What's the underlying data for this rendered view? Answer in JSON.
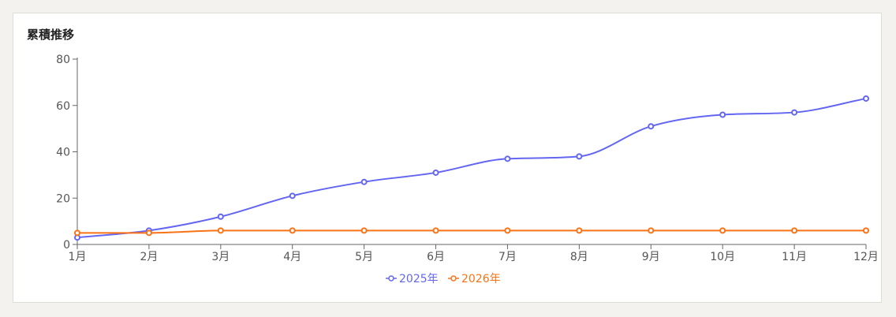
{
  "panel": {
    "title": "累積推移"
  },
  "chart_data": {
    "type": "line",
    "title": "累積推移",
    "categories": [
      "1月",
      "2月",
      "3月",
      "4月",
      "5月",
      "6月",
      "7月",
      "8月",
      "9月",
      "10月",
      "11月",
      "12月"
    ],
    "series": [
      {
        "name": "2025年",
        "color": "#6366f1",
        "values": [
          3,
          6,
          12,
          21,
          27,
          31,
          37,
          38,
          51,
          56,
          57,
          63
        ]
      },
      {
        "name": "2026年",
        "color": "#f97316",
        "values": [
          5,
          5,
          6,
          6,
          6,
          6,
          6,
          6,
          6,
          6,
          6,
          6
        ]
      }
    ],
    "ylim": [
      0,
      80
    ],
    "yticks": [
      0,
      20,
      40,
      60,
      80
    ],
    "grid": false,
    "legend_position": "bottom-center",
    "smooth": true
  }
}
